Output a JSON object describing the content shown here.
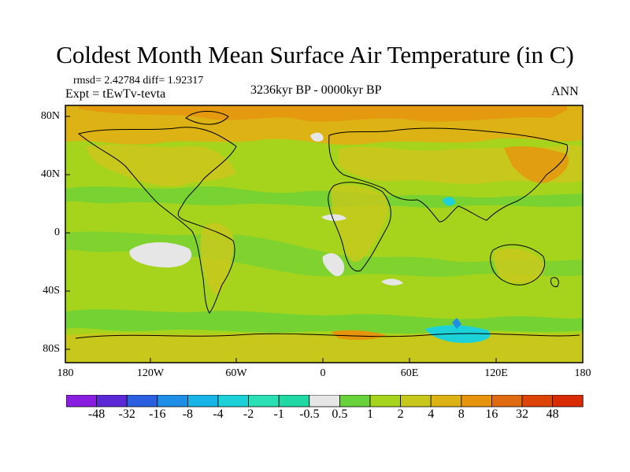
{
  "title": "Coldest Month Mean Surface Air Temperature (in C)",
  "stats": "rmsd= 2.42784 diff= 1.92317",
  "expt": "Expt = tEwTv-tevta",
  "period": "3236kyr BP - 0000kyr BP",
  "season": "ANN",
  "map": {
    "y_labels": [
      "80N",
      "40N",
      "0",
      "40S",
      "80S"
    ],
    "x_labels": [
      "180",
      "120W",
      "60W",
      "0",
      "60E",
      "120E",
      "180"
    ],
    "background_color": "#a6d41c"
  },
  "colorbar": {
    "labels": [
      "-48",
      "-32",
      "-16",
      "-8",
      "-4",
      "-2",
      "-1",
      "-0.5",
      "0.5",
      "1",
      "2",
      "4",
      "8",
      "16",
      "32",
      "48"
    ],
    "colors": [
      "#8a1ee0",
      "#5c28d6",
      "#2a60e0",
      "#1e8ee6",
      "#18b4e8",
      "#1cd2d8",
      "#2ce0b6",
      "#20d8a4",
      "#e6e6e6",
      "#68d23a",
      "#a6d41c",
      "#c8c81c",
      "#dcb214",
      "#e6940e",
      "#e06a10",
      "#dc4408",
      "#d82c06"
    ]
  }
}
